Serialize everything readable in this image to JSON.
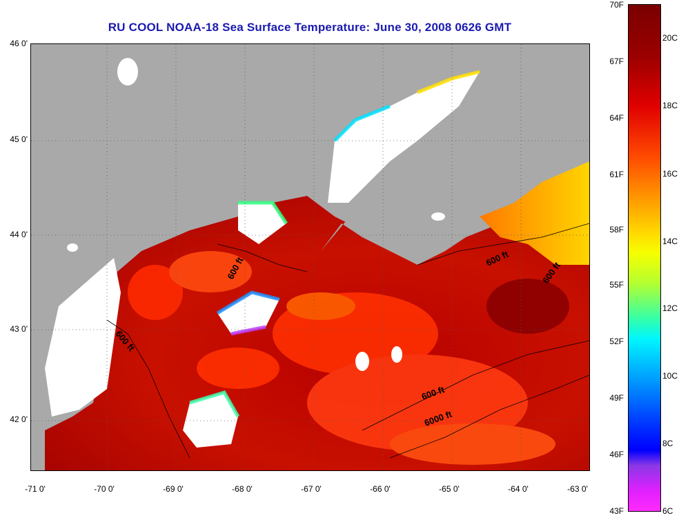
{
  "title": "RU COOL  NOAA-18  Sea Surface Temperature:  June 30, 2008 0626 GMT",
  "map": {
    "lat_labels": [
      "46 0'",
      "45 0'",
      "44 0'",
      "43 0'",
      "42 0'"
    ],
    "lon_labels": [
      "-71 0'",
      "-70 0'",
      "-69 0'",
      "-68 0'",
      "-67 0'",
      "-66 0'",
      "-65 0'",
      "-64 0'",
      "-63 0'"
    ],
    "contour_labels": [
      "600 ft",
      "600 ft",
      "600 ft",
      "600 ft",
      "600 ft",
      "6000 ft"
    ],
    "colors": {
      "land": "#a9a9a9",
      "cloud": "#ffffff",
      "warm": "#9a0000",
      "hot": "#e01000"
    }
  },
  "colorbar": {
    "fahrenheit": [
      "70F",
      "67F",
      "64F",
      "61F",
      "58F",
      "55F",
      "52F",
      "49F",
      "46F",
      "43F"
    ],
    "celsius": [
      "20C",
      "18C",
      "16C",
      "14C",
      "12C",
      "10C",
      "8C",
      "6C"
    ]
  }
}
